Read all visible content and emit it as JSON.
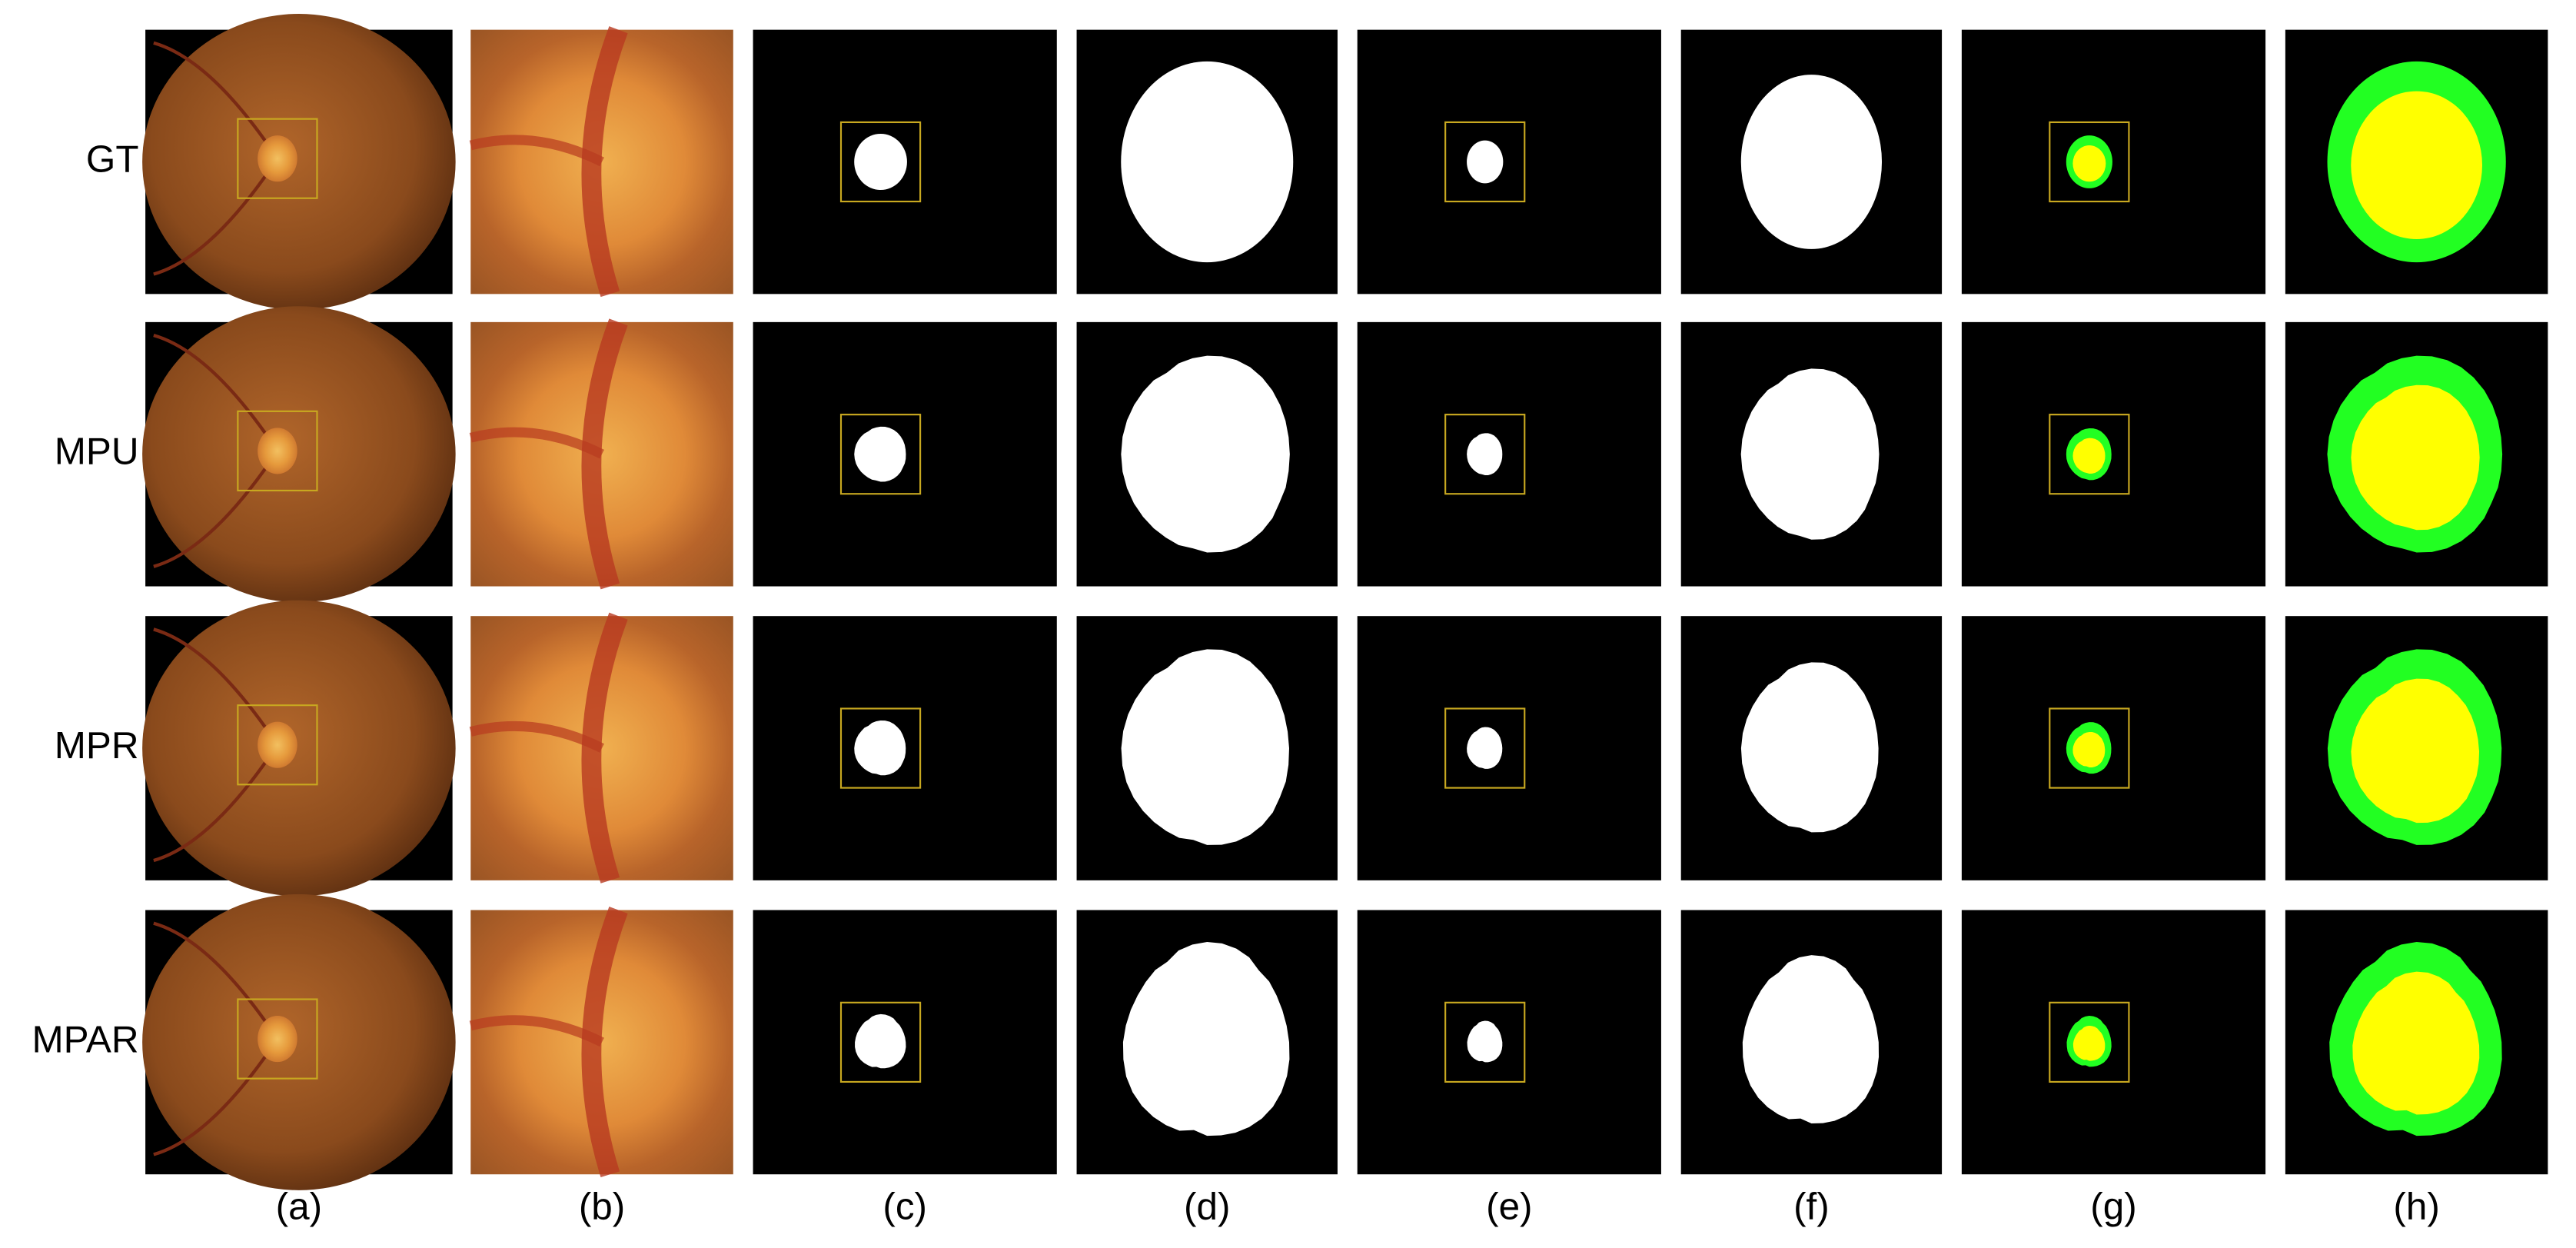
{
  "row_labels": [
    "GT",
    "MPU",
    "MPR",
    "MPAR"
  ],
  "column_labels": [
    "(a)",
    "(b)",
    "(c)",
    "(d)",
    "(e)",
    "(f)",
    "(g)",
    "(h)"
  ]
}
